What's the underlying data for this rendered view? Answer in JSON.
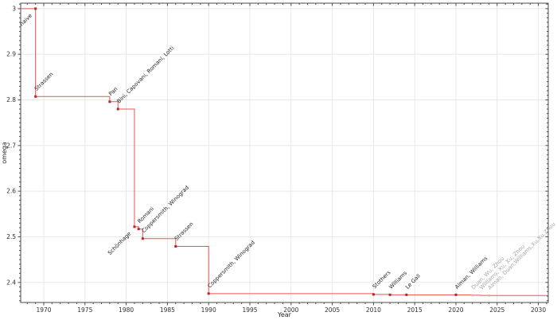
{
  "figure": {
    "background": "#ffffff"
  },
  "chart_data": {
    "type": "line",
    "title": "",
    "subtitle": "",
    "xlabel": "Year",
    "ylabel": "omega",
    "step": "post",
    "grid": true,
    "legend": "none",
    "xlim": [
      1967.2,
      2031.2
    ],
    "ylim": [
      2.356,
      3.012
    ],
    "x_ticks": [
      1970,
      1975,
      1980,
      1985,
      1990,
      1995,
      2000,
      2005,
      2010,
      2015,
      2020,
      2025,
      2030
    ],
    "x_minor_step": 1,
    "y_ticks": [
      2.4,
      2.5,
      2.6,
      2.7,
      2.8,
      2.9,
      3.0
    ],
    "y_tick_labels": [
      "2.4",
      "2.5",
      "2.6",
      "2.7",
      "2.8",
      "2.9",
      "3"
    ],
    "y_minor_step": 0.01,
    "colors": {
      "line": "#ee5350",
      "marker": "#bb2424",
      "muted_marker": "#f2a6a3",
      "label": "#1f1f1f",
      "muted_label": "#a6a6a6",
      "grid": "#e8e8e8",
      "spine": "#4a4a4a",
      "tick": "#4a4a4a",
      "tick_label": "#303030",
      "axis_label": "#262626"
    },
    "start_omega": 3.0,
    "points": [
      {
        "year": 1969,
        "omega": 3.0,
        "label": "naive",
        "anchor": "end"
      },
      {
        "year": 1969,
        "omega": 2.8074,
        "label": "Strassen",
        "anchor": "start"
      },
      {
        "year": 1978,
        "omega": 2.796,
        "label": "Pan",
        "anchor": "start"
      },
      {
        "year": 1979,
        "omega": 2.78,
        "label": "Bini, Capovani, Romani, Lotti",
        "anchor": "start"
      },
      {
        "year": 1981,
        "omega": 2.522,
        "label": "Schönhage",
        "anchor": "end"
      },
      {
        "year": 1981.5,
        "omega": 2.517,
        "label": "Romani",
        "anchor": "start"
      },
      {
        "year": 1982,
        "omega": 2.496,
        "label": "Coppersmith, Winograd",
        "anchor": "start"
      },
      {
        "year": 1986,
        "omega": 2.479,
        "label": "Strassen",
        "anchor": "start"
      },
      {
        "year": 1990,
        "omega": 2.3755,
        "label": "Coppersmith, Winograd",
        "anchor": "start"
      },
      {
        "year": 2010,
        "omega": 2.3737,
        "label": "Stothers",
        "anchor": "start"
      },
      {
        "year": 2012,
        "omega": 2.3729,
        "label": "Williams",
        "anchor": "start"
      },
      {
        "year": 2014,
        "omega": 2.3728639,
        "label": "Le Gall",
        "anchor": "start"
      },
      {
        "year": 2020,
        "omega": 2.3728596,
        "label": "Alman, Williams",
        "anchor": "start"
      },
      {
        "year": 2022,
        "omega": 2.371866,
        "label": "Duan, Wu, Zhou",
        "anchor": "start",
        "muted": true
      },
      {
        "year": 2023,
        "omega": 2.371552,
        "label": "Williams, Xu, Xu, Zhou",
        "anchor": "start",
        "muted": true
      },
      {
        "year": 2024,
        "omega": 2.371339,
        "label": "Alman, Duan,Williams,Xu,Xu,Zhou",
        "anchor": "start",
        "muted": true
      }
    ]
  }
}
